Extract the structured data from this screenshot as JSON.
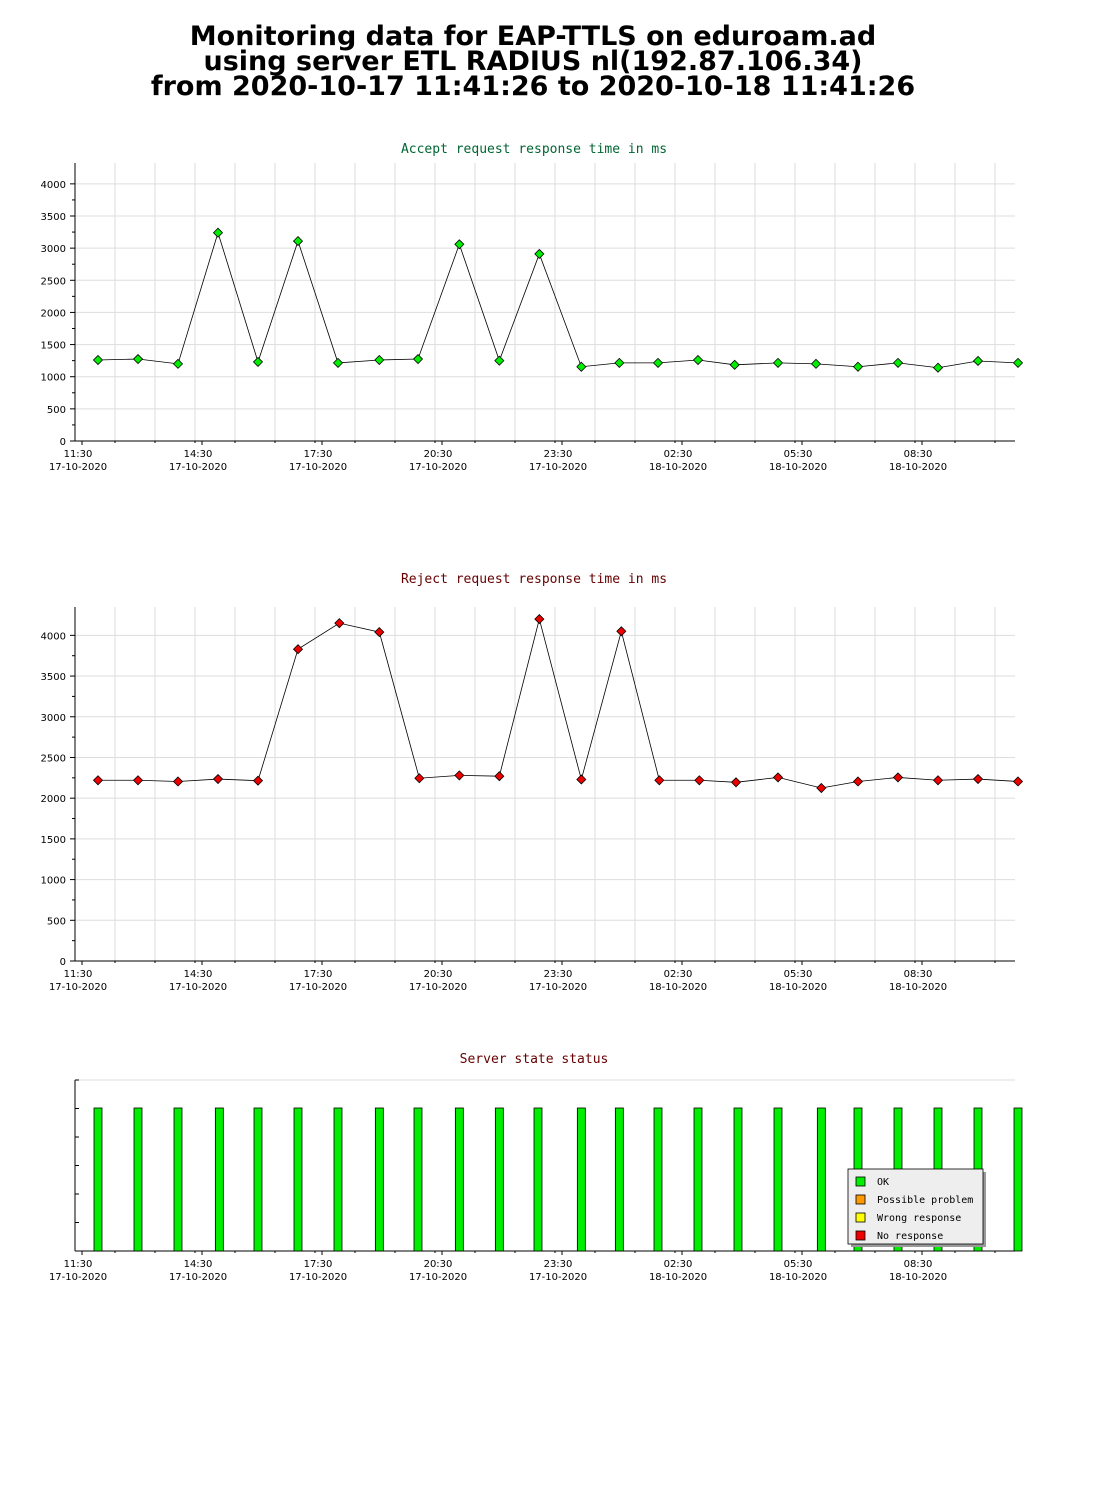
{
  "header": {
    "line1": "Monitoring data for EAP-TTLS on eduroam.ad",
    "line2": "using server ETL RADIUS nl(192.87.106.34)",
    "line3": "from 2020-10-17 11:41:26 to 2020-10-18 11:41:26"
  },
  "colors": {
    "accept_series": "#00ee00",
    "accept_title": "#006633",
    "reject_series": "#ee0000",
    "reject_title": "#660000",
    "status_title": "#660000",
    "grid": "#dddddd"
  },
  "chart_data": [
    {
      "id": "accept",
      "type": "line",
      "title": "Accept request response time in ms",
      "x_tick_labels": [
        {
          "time": "11:30",
          "date": "17-10-2020"
        },
        {
          "time": "14:30",
          "date": "17-10-2020"
        },
        {
          "time": "17:30",
          "date": "17-10-2020"
        },
        {
          "time": "20:30",
          "date": "17-10-2020"
        },
        {
          "time": "23:30",
          "date": "17-10-2020"
        },
        {
          "time": "02:30",
          "date": "18-10-2020"
        },
        {
          "time": "05:30",
          "date": "18-10-2020"
        },
        {
          "time": "08:30",
          "date": "18-10-2020"
        }
      ],
      "ylim": [
        0,
        4200
      ],
      "y_ticks": [
        0,
        500,
        1000,
        1500,
        2000,
        2500,
        3000,
        3500,
        4000
      ],
      "grid": true,
      "series": [
        {
          "x": [
            "11:45",
            "12:45",
            "13:45",
            "14:45",
            "15:45",
            "16:45",
            "17:45",
            "18:47",
            "19:45",
            "20:47",
            "21:47",
            "22:47",
            "23:50",
            "00:47",
            "01:45",
            "02:45",
            "03:40",
            "04:45",
            "05:42",
            "06:45",
            "07:45",
            "08:45",
            "09:45",
            "10:45"
          ],
          "values": [
            1260,
            1275,
            1200,
            3240,
            1230,
            3110,
            1215,
            1260,
            1275,
            3060,
            1250,
            2910,
            1155,
            1215,
            1215,
            1260,
            1185,
            1215,
            1200,
            1155,
            1215,
            1140,
            1245,
            1215
          ]
        }
      ]
    },
    {
      "id": "reject",
      "type": "line",
      "title": "Reject request response time in ms",
      "x_tick_labels": [
        {
          "time": "11:30",
          "date": "17-10-2020"
        },
        {
          "time": "14:30",
          "date": "17-10-2020"
        },
        {
          "time": "17:30",
          "date": "17-10-2020"
        },
        {
          "time": "20:30",
          "date": "17-10-2020"
        },
        {
          "time": "23:30",
          "date": "17-10-2020"
        },
        {
          "time": "02:30",
          "date": "18-10-2020"
        },
        {
          "time": "05:30",
          "date": "18-10-2020"
        },
        {
          "time": "08:30",
          "date": "18-10-2020"
        }
      ],
      "ylim": [
        0,
        4250
      ],
      "y_ticks": [
        0,
        500,
        1000,
        1500,
        2000,
        2500,
        3000,
        3500,
        4000
      ],
      "grid": true,
      "series": [
        {
          "x": [
            "11:45",
            "12:45",
            "13:45",
            "14:45",
            "15:45",
            "16:45",
            "17:47",
            "18:47",
            "19:47",
            "20:47",
            "21:47",
            "22:47",
            "23:50",
            "00:50",
            "01:47",
            "02:47",
            "03:42",
            "04:45",
            "05:50",
            "06:45",
            "07:45",
            "08:45",
            "09:45",
            "10:45"
          ],
          "values": [
            2220,
            2220,
            2205,
            2235,
            2215,
            3830,
            4150,
            4040,
            2245,
            2280,
            2270,
            4200,
            2230,
            4050,
            2220,
            2220,
            2195,
            2255,
            2125,
            2205,
            2255,
            2220,
            2235,
            2205
          ]
        }
      ]
    },
    {
      "id": "status",
      "type": "bar",
      "title": "Server state status",
      "x_tick_labels": [
        {
          "time": "11:30",
          "date": "17-10-2020"
        },
        {
          "time": "14:30",
          "date": "17-10-2020"
        },
        {
          "time": "17:30",
          "date": "17-10-2020"
        },
        {
          "time": "20:30",
          "date": "17-10-2020"
        },
        {
          "time": "23:30",
          "date": "17-10-2020"
        },
        {
          "time": "02:30",
          "date": "18-10-2020"
        },
        {
          "time": "05:30",
          "date": "18-10-2020"
        },
        {
          "time": "08:30",
          "date": "18-10-2020"
        }
      ],
      "categories": [
        "11:45",
        "12:45",
        "13:45",
        "14:47",
        "15:45",
        "16:45",
        "17:45",
        "18:47",
        "19:45",
        "20:47",
        "21:47",
        "22:45",
        "23:50",
        "00:47",
        "01:45",
        "02:45",
        "03:45",
        "04:45",
        "05:50",
        "06:45",
        "07:45",
        "08:45",
        "09:45",
        "10:45"
      ],
      "values": [
        "OK",
        "OK",
        "OK",
        "OK",
        "OK",
        "OK",
        "OK",
        "OK",
        "OK",
        "OK",
        "OK",
        "OK",
        "OK",
        "OK",
        "OK",
        "OK",
        "OK",
        "OK",
        "OK",
        "OK",
        "OK",
        "OK",
        "OK",
        "OK"
      ],
      "legend": {
        "placement": "bottom-right",
        "items": [
          {
            "label": "OK",
            "color": "#00ee00"
          },
          {
            "label": "Possible problem",
            "color": "#ff9900"
          },
          {
            "label": "Wrong response",
            "color": "#ffff00"
          },
          {
            "label": "No response",
            "color": "#ee0000"
          }
        ]
      }
    }
  ]
}
